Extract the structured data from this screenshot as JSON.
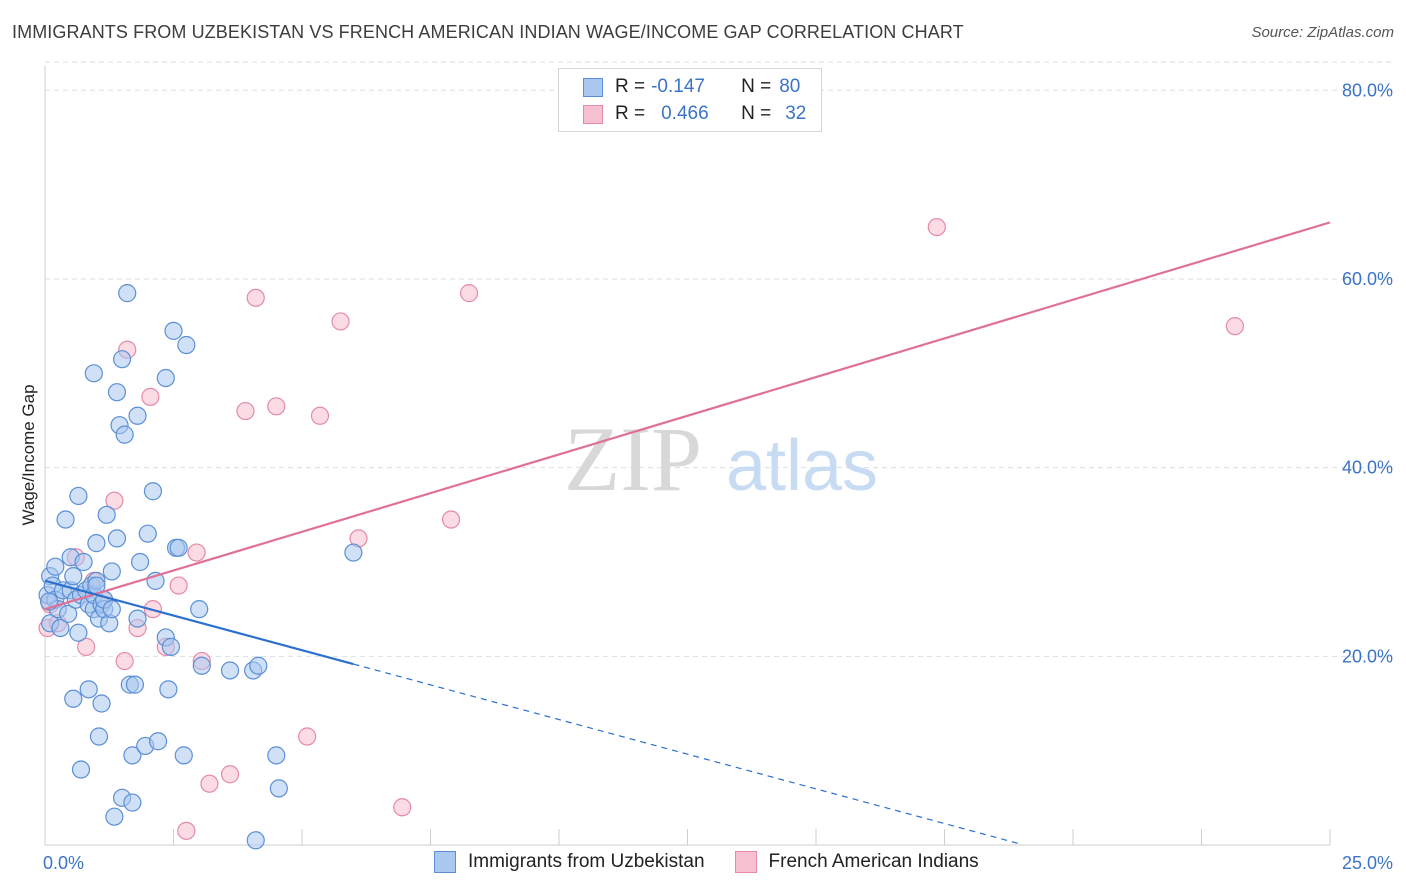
{
  "title": "IMMIGRANTS FROM UZBEKISTAN VS FRENCH AMERICAN INDIAN WAGE/INCOME GAP CORRELATION CHART",
  "source": "Source: ZipAtlas.com",
  "watermark": {
    "zip": "ZIP",
    "atlas": "atlas"
  },
  "legend": {
    "rows": [
      {
        "r_label": "R =",
        "r_value": "-0.147",
        "n_label": "N =",
        "n_value": "80"
      },
      {
        "r_label": "R =",
        "r_value": "0.466",
        "n_label": "N =",
        "n_value": "32"
      }
    ]
  },
  "bottom_legend": {
    "series1": "Immigrants from Uzbekistan",
    "series2": "French American Indians"
  },
  "colors": {
    "blue_fill": "#aac8f0",
    "blue_stroke": "#5b8fd6",
    "blue_line": "#2c6fcd",
    "pink_fill": "#f7c0d0",
    "pink_stroke": "#e58aa6",
    "pink_line": "#e07098",
    "tick_text": "#3b74c4",
    "grid": "#dddddd"
  },
  "chart_data": {
    "type": "scatter",
    "title": "IMMIGRANTS FROM UZBEKISTAN VS FRENCH AMERICAN INDIAN WAGE/INCOME GAP CORRELATION CHART",
    "xlabel": "",
    "ylabel": "Wage/Income Gap",
    "xlim": [
      0,
      25
    ],
    "ylim": [
      0,
      83
    ],
    "x_tick_labels": [
      "0.0%",
      "25.0%"
    ],
    "y_ticks": [
      20,
      40,
      60,
      80
    ],
    "y_tick_labels": [
      "20.0%",
      "40.0%",
      "60.0%",
      "80.0%"
    ],
    "grid": true,
    "series": [
      {
        "name": "Immigrants from Uzbekistan",
        "color": "blue",
        "trend": {
          "x0": 0.0,
          "y0": 28.0,
          "x_solid_end": 6.0,
          "x_end": 19.0,
          "slope": -1.47
        },
        "points": [
          [
            0.05,
            26.5
          ],
          [
            0.1,
            28.5
          ],
          [
            0.1,
            23.5
          ],
          [
            0.15,
            27.5
          ],
          [
            0.2,
            29.5
          ],
          [
            0.2,
            26.0
          ],
          [
            0.25,
            25.0
          ],
          [
            0.3,
            23.0
          ],
          [
            0.35,
            27.0
          ],
          [
            0.4,
            34.5
          ],
          [
            0.45,
            24.5
          ],
          [
            0.5,
            30.5
          ],
          [
            0.5,
            27.0
          ],
          [
            0.55,
            28.5
          ],
          [
            0.55,
            15.5
          ],
          [
            0.6,
            26.0
          ],
          [
            0.65,
            37.0
          ],
          [
            0.65,
            22.5
          ],
          [
            0.7,
            26.5
          ],
          [
            0.7,
            8.0
          ],
          [
            0.75,
            30.0
          ],
          [
            0.8,
            27.0
          ],
          [
            0.85,
            25.5
          ],
          [
            0.85,
            16.5
          ],
          [
            0.9,
            27.5
          ],
          [
            0.95,
            25.0
          ],
          [
            0.95,
            26.5
          ],
          [
            0.95,
            50.0
          ],
          [
            1.0,
            28.0
          ],
          [
            1.0,
            32.0
          ],
          [
            1.0,
            27.5
          ],
          [
            1.05,
            24.0
          ],
          [
            1.05,
            11.5
          ],
          [
            1.1,
            25.5
          ],
          [
            1.1,
            15.0
          ],
          [
            1.15,
            25.0
          ],
          [
            1.15,
            26.0
          ],
          [
            1.2,
            35.0
          ],
          [
            1.25,
            23.5
          ],
          [
            1.3,
            25.0
          ],
          [
            1.3,
            29.0
          ],
          [
            1.35,
            3.0
          ],
          [
            1.4,
            32.5
          ],
          [
            1.4,
            48.0
          ],
          [
            1.45,
            44.5
          ],
          [
            1.5,
            51.5
          ],
          [
            1.5,
            5.0
          ],
          [
            1.55,
            43.5
          ],
          [
            1.6,
            58.5
          ],
          [
            1.65,
            17.0
          ],
          [
            1.7,
            4.5
          ],
          [
            1.7,
            9.5
          ],
          [
            1.75,
            17.0
          ],
          [
            1.8,
            45.5
          ],
          [
            1.8,
            24.0
          ],
          [
            1.85,
            30.0
          ],
          [
            1.95,
            10.5
          ],
          [
            2.0,
            33.0
          ],
          [
            2.1,
            37.5
          ],
          [
            2.15,
            28.0
          ],
          [
            2.2,
            11.0
          ],
          [
            2.35,
            49.5
          ],
          [
            2.35,
            22.0
          ],
          [
            2.4,
            16.5
          ],
          [
            2.45,
            21.0
          ],
          [
            2.5,
            54.5
          ],
          [
            2.55,
            31.5
          ],
          [
            2.6,
            31.5
          ],
          [
            2.7,
            9.5
          ],
          [
            2.75,
            53.0
          ],
          [
            3.0,
            25.0
          ],
          [
            3.05,
            19.0
          ],
          [
            3.6,
            18.5
          ],
          [
            4.05,
            18.5
          ],
          [
            4.1,
            0.5
          ],
          [
            4.15,
            19.0
          ],
          [
            4.5,
            9.5
          ],
          [
            4.55,
            6.0
          ],
          [
            6.0,
            31.0
          ],
          [
            0.08,
            25.8
          ]
        ]
      },
      {
        "name": "French American Indians",
        "color": "pink",
        "trend": {
          "x0": 0.0,
          "y0": 25.0,
          "x_end": 25.0,
          "slope": 1.64
        },
        "points": [
          [
            0.05,
            23.0
          ],
          [
            0.1,
            25.5
          ],
          [
            0.25,
            23.5
          ],
          [
            0.6,
            30.5
          ],
          [
            0.8,
            21.0
          ],
          [
            0.95,
            28.0
          ],
          [
            1.15,
            26.0
          ],
          [
            1.35,
            36.5
          ],
          [
            1.55,
            19.5
          ],
          [
            1.6,
            52.5
          ],
          [
            1.8,
            23.0
          ],
          [
            2.05,
            47.5
          ],
          [
            2.1,
            25.0
          ],
          [
            2.35,
            21.0
          ],
          [
            2.6,
            27.5
          ],
          [
            2.75,
            1.5
          ],
          [
            2.95,
            31.0
          ],
          [
            3.05,
            19.5
          ],
          [
            3.2,
            6.5
          ],
          [
            3.6,
            7.5
          ],
          [
            3.9,
            46.0
          ],
          [
            4.1,
            58.0
          ],
          [
            4.5,
            46.5
          ],
          [
            5.1,
            11.5
          ],
          [
            5.35,
            45.5
          ],
          [
            5.75,
            55.5
          ],
          [
            6.1,
            32.5
          ],
          [
            6.95,
            4.0
          ],
          [
            7.9,
            34.5
          ],
          [
            8.25,
            58.5
          ],
          [
            17.35,
            65.5
          ],
          [
            23.15,
            55.0
          ]
        ]
      }
    ]
  }
}
